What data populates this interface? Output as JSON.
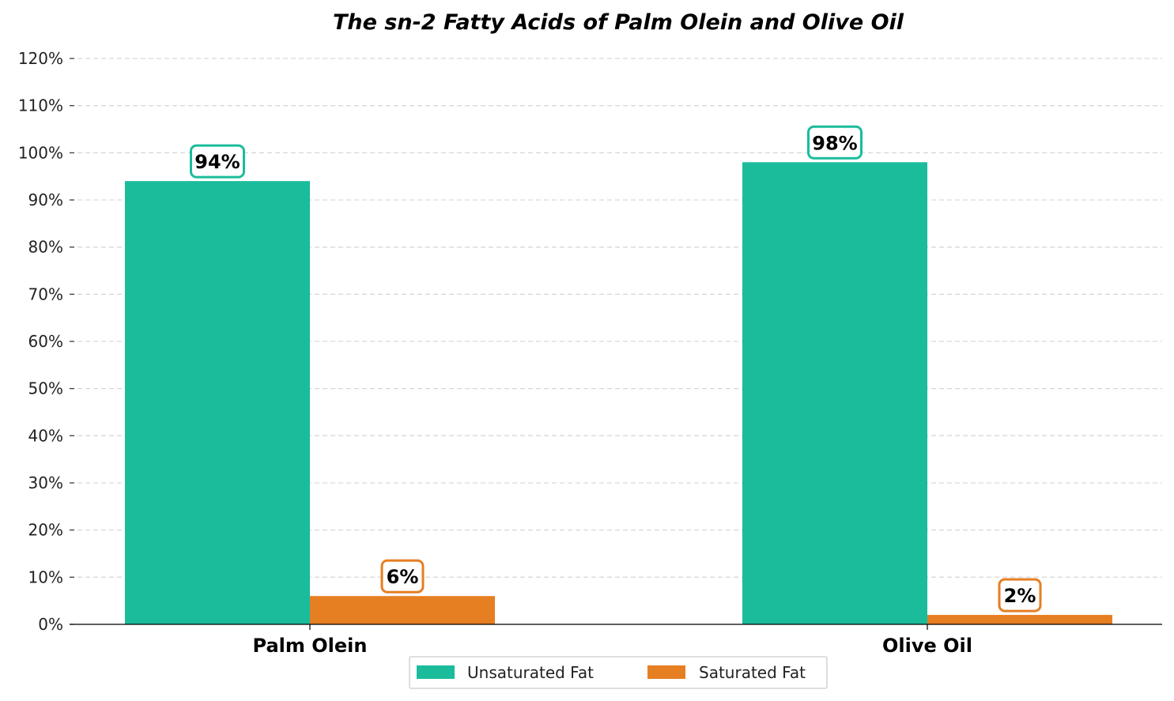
{
  "chart_data": {
    "type": "bar",
    "title": "The sn-2 Fatty Acids of Palm Olein and Olive Oil",
    "categories": [
      "Palm Olein",
      "Olive Oil"
    ],
    "series": [
      {
        "name": "Unsaturated Fat",
        "values": [
          94,
          98
        ],
        "color": "#1abc9c",
        "labels": [
          "94%",
          "98%"
        ]
      },
      {
        "name": "Saturated Fat",
        "values": [
          6,
          2
        ],
        "color": "#e67e22",
        "labels": [
          "6%",
          "2%"
        ]
      }
    ],
    "ylim": [
      0,
      120
    ],
    "yticks": [
      0,
      10,
      20,
      30,
      40,
      50,
      60,
      70,
      80,
      90,
      100,
      110,
      120
    ],
    "ytick_labels": [
      "0%",
      "10%",
      "20%",
      "30%",
      "40%",
      "50%",
      "60%",
      "70%",
      "80%",
      "90%",
      "100%",
      "110%",
      "120%"
    ],
    "grid": "horizontal dashed",
    "legend_position": "bottom-center"
  }
}
